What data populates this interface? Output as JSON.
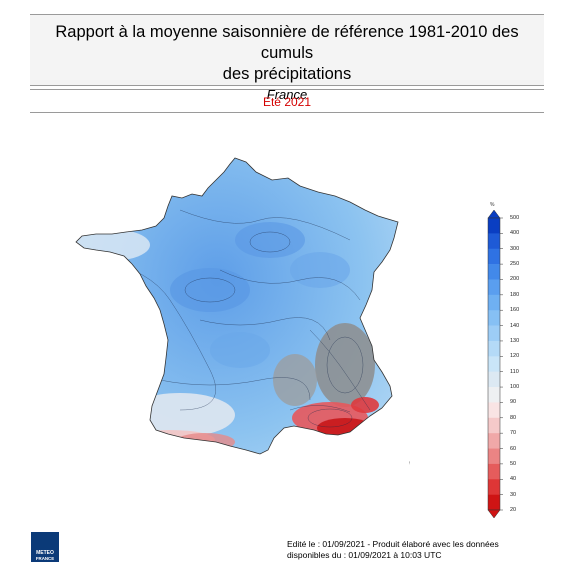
{
  "header": {
    "title_line1": "Rapport à la moyenne saisonnière de référence 1981-2010 des cumuls",
    "title_line2": "des précipitations",
    "region": "France"
  },
  "season": "Eté 2021",
  "legend": {
    "unit": "%",
    "levels": [
      "500",
      "400",
      "300",
      "250",
      "200",
      "180",
      "160",
      "140",
      "130",
      "120",
      "110",
      "100",
      "90",
      "80",
      "70",
      "60",
      "50",
      "40",
      "30",
      "20"
    ],
    "colors": [
      "#0a3ec2",
      "#1e5ad6",
      "#2f72e3",
      "#4289ea",
      "#5a9eef",
      "#6fb0f2",
      "#86c0f4",
      "#9dcdf6",
      "#b4daf7",
      "#c9e5f8",
      "#dce9f3",
      "#eef0f2",
      "#f9e4e4",
      "#f5c9c9",
      "#f0a8a8",
      "#eb8484",
      "#e55c5c",
      "#de3636",
      "#cf1414"
    ]
  },
  "footer": {
    "line1": "Edité le : 01/09/2021 - Produit élaboré avec les données",
    "line2": "disponibles du : 01/09/2021 à 10:03 UTC"
  },
  "logo": {
    "text1": "METEO",
    "text2": "FRANCE",
    "color": "#0b3a78"
  },
  "map": {
    "region_name": "France",
    "color_wet": "#7fb8ea",
    "color_dry": "#d9252a",
    "color_alps": "#8a8a8a"
  }
}
